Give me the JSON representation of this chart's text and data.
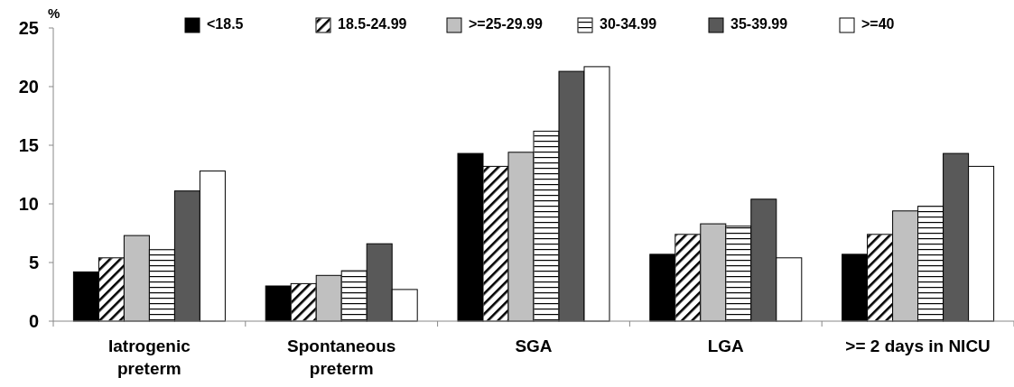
{
  "chart_data": {
    "type": "bar",
    "ylabel": "%",
    "categories": [
      "Iatrogenic preterm",
      "Spontaneous preterm",
      "SGA",
      "LGA",
      ">= 2 days in NICU"
    ],
    "series": [
      {
        "name": "<18.5",
        "color": "#000000",
        "values": [
          4.2,
          3.0,
          14.3,
          5.7,
          5.7
        ]
      },
      {
        "name": "18.5-24.99",
        "color": "#ffffff",
        "values": [
          5.4,
          3.2,
          13.2,
          7.4,
          7.4
        ]
      },
      {
        "name": ">=25-29.99",
        "color": "#c0c0c0",
        "values": [
          7.3,
          3.9,
          14.4,
          8.3,
          9.4
        ]
      },
      {
        "name": "30-34.99",
        "color": "#ffffff",
        "values": [
          6.1,
          4.3,
          16.2,
          8.1,
          9.8
        ]
      },
      {
        "name": "35-39.99",
        "color": "#595959",
        "values": [
          11.1,
          6.6,
          21.3,
          10.4,
          14.3
        ]
      },
      {
        "name": ">=40",
        "color": "#ffffff",
        "values": [
          12.8,
          2.7,
          21.7,
          5.4,
          13.2
        ]
      }
    ],
    "ylim": [
      0,
      25
    ],
    "yticks": [
      0,
      5,
      10,
      15,
      20,
      25
    ],
    "grid": false,
    "legend": "top"
  }
}
